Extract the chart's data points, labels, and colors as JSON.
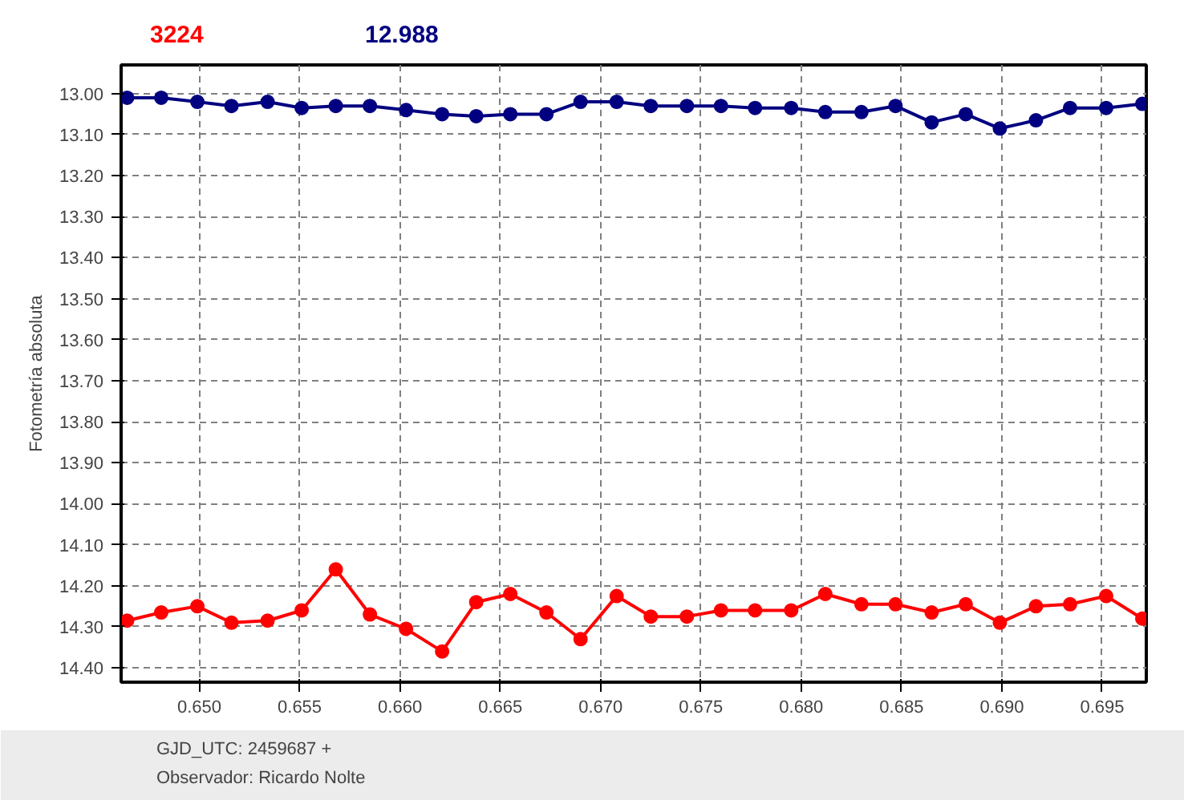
{
  "chart_data": {
    "type": "line",
    "ylabel": "Fotometría absoluta",
    "x": [
      0.6464,
      0.6481,
      0.6499,
      0.6516,
      0.6534,
      0.6551,
      0.6568,
      0.6585,
      0.6603,
      0.6621,
      0.6638,
      0.6655,
      0.6673,
      0.669,
      0.6708,
      0.6725,
      0.6743,
      0.676,
      0.6777,
      0.6795,
      0.6812,
      0.683,
      0.6847,
      0.6865,
      0.6882,
      0.6899,
      0.6917,
      0.6934,
      0.6952,
      0.697
    ],
    "series": [
      {
        "name": "3224",
        "color": "#ff0000",
        "values": [
          14.285,
          14.265,
          14.25,
          14.29,
          14.285,
          14.26,
          14.16,
          14.27,
          14.305,
          14.36,
          14.24,
          14.22,
          14.265,
          14.33,
          14.225,
          14.275,
          14.275,
          14.26,
          14.26,
          14.26,
          14.22,
          14.245,
          14.245,
          14.265,
          14.245,
          14.29,
          14.25,
          14.245,
          14.225,
          14.28
        ]
      },
      {
        "name": "12.988",
        "color": "#000080",
        "values": [
          13.01,
          13.01,
          13.02,
          13.03,
          13.02,
          13.035,
          13.03,
          13.03,
          13.04,
          13.05,
          13.055,
          13.05,
          13.05,
          13.02,
          13.02,
          13.03,
          13.03,
          13.03,
          13.035,
          13.035,
          13.045,
          13.045,
          13.03,
          13.07,
          13.05,
          13.085,
          13.065,
          13.035,
          13.035,
          13.025
        ]
      }
    ],
    "xlim": [
      0.6461,
      0.6972
    ],
    "xticks": [
      {
        "value": 0.65,
        "label": "0.650"
      },
      {
        "value": 0.655,
        "label": "0.655"
      },
      {
        "value": 0.66,
        "label": "0.660"
      },
      {
        "value": 0.665,
        "label": "0.665"
      },
      {
        "value": 0.67,
        "label": "0.670"
      },
      {
        "value": 0.675,
        "label": "0.675"
      },
      {
        "value": 0.68,
        "label": "0.680"
      },
      {
        "value": 0.685,
        "label": "0.685"
      },
      {
        "value": 0.69,
        "label": "0.690"
      },
      {
        "value": 0.695,
        "label": "0.695"
      }
    ],
    "ylim": [
      14.435,
      12.93
    ],
    "yticks": [
      {
        "value": 13.0,
        "label": "13.00"
      },
      {
        "value": 13.1,
        "label": "13.10"
      },
      {
        "value": 13.2,
        "label": "13.20"
      },
      {
        "value": 13.3,
        "label": "13.30"
      },
      {
        "value": 13.4,
        "label": "13.40"
      },
      {
        "value": 13.5,
        "label": "13.50"
      },
      {
        "value": 13.6,
        "label": "13.60"
      },
      {
        "value": 13.7,
        "label": "13.70"
      },
      {
        "value": 13.8,
        "label": "13.80"
      },
      {
        "value": 13.9,
        "label": "13.90"
      },
      {
        "value": 14.0,
        "label": "14.00"
      },
      {
        "value": 14.1,
        "label": "14.10"
      },
      {
        "value": 14.2,
        "label": "14.20"
      },
      {
        "value": 14.3,
        "label": "14.30"
      },
      {
        "value": 14.4,
        "label": "14.40"
      }
    ],
    "grid": true,
    "marker": "circle",
    "line_style": "solid",
    "annotations": [
      "GJD_UTC: 2459687 +",
      "Observador: Ricardo Nolte"
    ]
  }
}
